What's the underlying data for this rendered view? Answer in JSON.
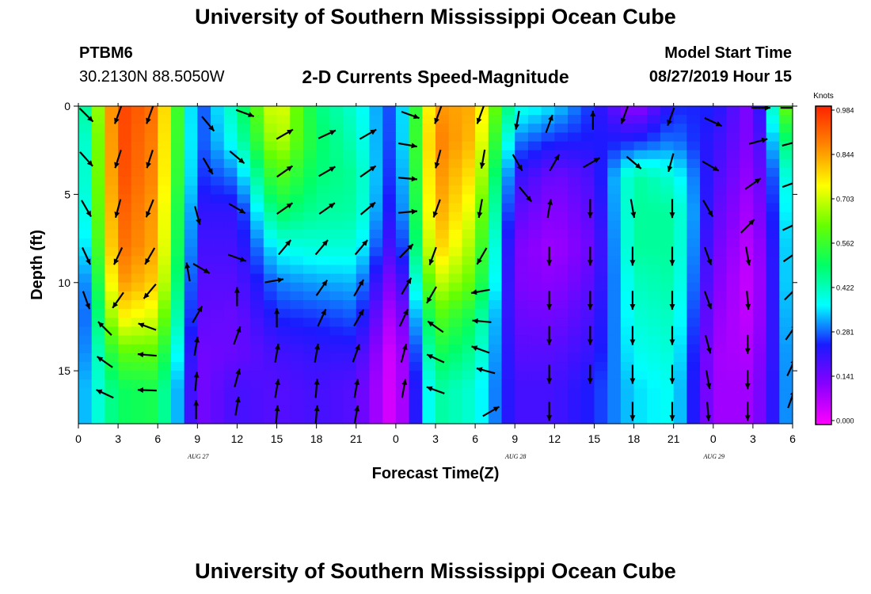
{
  "header": {
    "title": "University of Southern Mississippi Ocean Cube",
    "station_id": "PTBM6",
    "station_coords": "30.2130N 88.5050W",
    "chart_title": "2-D Currents Speed-Magnitude",
    "model_label": "Model Start Time",
    "model_time": "08/27/2019 Hour 15"
  },
  "footer": {
    "title": "University of Southern Mississippi Ocean Cube"
  },
  "colors": {
    "scale": [
      "#ff00ff",
      "#8a00ff",
      "#1a1aff",
      "#00ffff",
      "#00ff66",
      "#66ff00",
      "#ffff00",
      "#ff8800",
      "#ff2200"
    ],
    "arrow": "#000000"
  },
  "chart_data": {
    "type": "heatmap",
    "title": "2-D Currents Speed-Magnitude",
    "xlabel": "Forecast Time(Z)",
    "ylabel": "Depth (ft)",
    "x_ticks": [
      "0",
      "3",
      "6",
      "9",
      "12",
      "15",
      "18",
      "21",
      "0",
      "3",
      "6",
      "9",
      "12",
      "15",
      "18",
      "21",
      "0",
      "3",
      "6"
    ],
    "date_labels": [
      "AUG 27",
      "AUG 28",
      "AUG 29"
    ],
    "y_ticks": [
      "0",
      "5",
      "10",
      "15"
    ],
    "ylim": [
      0,
      18
    ],
    "colorbar": {
      "label": "Knots",
      "ticks": [
        "0.984",
        "0.844",
        "0.703",
        "0.562",
        "0.422",
        "0.281",
        "0.141",
        "0.000"
      ],
      "range": [
        0,
        0.984
      ]
    },
    "depths_ft": [
      0,
      2,
      4,
      6,
      8,
      10,
      12,
      14,
      16
    ],
    "hours": [
      0,
      3,
      6,
      9,
      12,
      15,
      18,
      21,
      24,
      27,
      30,
      33,
      36,
      39,
      42,
      45,
      48,
      51,
      54
    ],
    "speed_columns_knots": [
      [
        0.35,
        0.3,
        0.3,
        0.28,
        0.25,
        0.2,
        0.2,
        0.25,
        0.3
      ],
      [
        0.95,
        0.95,
        0.94,
        0.92,
        0.9,
        0.85,
        0.75,
        0.6,
        0.5
      ],
      [
        0.88,
        0.86,
        0.85,
        0.83,
        0.82,
        0.78,
        0.7,
        0.6,
        0.52
      ],
      [
        0.25,
        0.26,
        0.25,
        0.22,
        0.2,
        0.18,
        0.17,
        0.15,
        0.14
      ],
      [
        0.45,
        0.4,
        0.3,
        0.22,
        0.2,
        0.18,
        0.16,
        0.16,
        0.2
      ],
      [
        0.75,
        0.7,
        0.6,
        0.5,
        0.38,
        0.3,
        0.25,
        0.2,
        0.18
      ],
      [
        0.48,
        0.5,
        0.48,
        0.45,
        0.4,
        0.32,
        0.26,
        0.22,
        0.2
      ],
      [
        0.4,
        0.42,
        0.45,
        0.44,
        0.4,
        0.33,
        0.28,
        0.22,
        0.18
      ],
      [
        0.25,
        0.24,
        0.22,
        0.2,
        0.16,
        0.1,
        0.05,
        0.02,
        0.02
      ],
      [
        0.85,
        0.88,
        0.86,
        0.84,
        0.8,
        0.7,
        0.6,
        0.52,
        0.45
      ],
      [
        0.82,
        0.8,
        0.75,
        0.7,
        0.65,
        0.6,
        0.5,
        0.45,
        0.4
      ],
      [
        0.4,
        0.3,
        0.22,
        0.18,
        0.14,
        0.14,
        0.16,
        0.18,
        0.2
      ],
      [
        0.35,
        0.25,
        0.15,
        0.12,
        0.1,
        0.12,
        0.15,
        0.18,
        0.2
      ],
      [
        0.25,
        0.24,
        0.2,
        0.18,
        0.16,
        0.18,
        0.2,
        0.22,
        0.25
      ],
      [
        0.1,
        0.25,
        0.45,
        0.45,
        0.45,
        0.42,
        0.4,
        0.38,
        0.35
      ],
      [
        0.25,
        0.3,
        0.4,
        0.45,
        0.45,
        0.44,
        0.42,
        0.4,
        0.38
      ],
      [
        0.25,
        0.22,
        0.2,
        0.18,
        0.16,
        0.14,
        0.12,
        0.1,
        0.1
      ],
      [
        0.12,
        0.12,
        0.1,
        0.08,
        0.06,
        0.05,
        0.06,
        0.08,
        0.1
      ],
      [
        0.7,
        0.55,
        0.45,
        0.42,
        0.4,
        0.4,
        0.38,
        0.36,
        0.35
      ]
    ],
    "arrows": [
      {
        "x": 0.6,
        "y": 0.5,
        "a": -45
      },
      {
        "x": 0.6,
        "y": 3.0,
        "a": -48
      },
      {
        "x": 0.6,
        "y": 5.8,
        "a": -60
      },
      {
        "x": 0.6,
        "y": 8.5,
        "a": -65
      },
      {
        "x": 0.6,
        "y": 11.0,
        "a": -70
      },
      {
        "x": 3.0,
        "y": 0.5,
        "a": -110
      },
      {
        "x": 3.0,
        "y": 3.0,
        "a": -108
      },
      {
        "x": 3.0,
        "y": 5.8,
        "a": -105
      },
      {
        "x": 3.0,
        "y": 8.5,
        "a": -115
      },
      {
        "x": 3.0,
        "y": 11.0,
        "a": -125
      },
      {
        "x": 2.0,
        "y": 12.6,
        "a": 135
      },
      {
        "x": 2.0,
        "y": 14.5,
        "a": 145
      },
      {
        "x": 2.0,
        "y": 16.3,
        "a": 155
      },
      {
        "x": 5.4,
        "y": 0.5,
        "a": -110
      },
      {
        "x": 5.4,
        "y": 3.0,
        "a": -108
      },
      {
        "x": 5.4,
        "y": 5.8,
        "a": -112
      },
      {
        "x": 5.4,
        "y": 8.5,
        "a": -120
      },
      {
        "x": 5.4,
        "y": 10.5,
        "a": -130
      },
      {
        "x": 5.2,
        "y": 12.5,
        "a": 160
      },
      {
        "x": 5.2,
        "y": 14.1,
        "a": 175
      },
      {
        "x": 5.2,
        "y": 16.1,
        "a": 178
      },
      {
        "x": 9.8,
        "y": 1.0,
        "a": -50
      },
      {
        "x": 9.8,
        "y": 3.4,
        "a": -60
      },
      {
        "x": 9.0,
        "y": 6.2,
        "a": -75
      },
      {
        "x": 8.3,
        "y": 9.4,
        "a": 100
      },
      {
        "x": 9.3,
        "y": 9.2,
        "a": -30
      },
      {
        "x": 9.0,
        "y": 11.8,
        "a": 60
      },
      {
        "x": 8.9,
        "y": 13.6,
        "a": 80
      },
      {
        "x": 8.9,
        "y": 15.6,
        "a": 85
      },
      {
        "x": 8.9,
        "y": 17.2,
        "a": 90
      },
      {
        "x": 12.6,
        "y": 0.4,
        "a": -20
      },
      {
        "x": 12.0,
        "y": 2.9,
        "a": -40
      },
      {
        "x": 12.0,
        "y": 5.8,
        "a": -30
      },
      {
        "x": 12.0,
        "y": 8.6,
        "a": -20
      },
      {
        "x": 12.0,
        "y": 10.8,
        "a": 90
      },
      {
        "x": 12.0,
        "y": 13.0,
        "a": 70
      },
      {
        "x": 12.0,
        "y": 15.4,
        "a": 75
      },
      {
        "x": 12.0,
        "y": 17.0,
        "a": 80
      },
      {
        "x": 15.6,
        "y": 1.6,
        "a": 30
      },
      {
        "x": 15.6,
        "y": 3.7,
        "a": 35
      },
      {
        "x": 15.6,
        "y": 5.8,
        "a": 35
      },
      {
        "x": 15.6,
        "y": 8.0,
        "a": 50
      },
      {
        "x": 14.8,
        "y": 9.9,
        "a": 10
      },
      {
        "x": 15.0,
        "y": 12.0,
        "a": 90
      },
      {
        "x": 15.0,
        "y": 14.0,
        "a": 80
      },
      {
        "x": 15.0,
        "y": 16.0,
        "a": 80
      },
      {
        "x": 15.0,
        "y": 17.5,
        "a": 85
      },
      {
        "x": 18.8,
        "y": 1.6,
        "a": 25
      },
      {
        "x": 18.8,
        "y": 3.7,
        "a": 30
      },
      {
        "x": 18.8,
        "y": 5.8,
        "a": 35
      },
      {
        "x": 18.4,
        "y": 8.0,
        "a": 50
      },
      {
        "x": 18.4,
        "y": 10.3,
        "a": 55
      },
      {
        "x": 18.4,
        "y": 12.0,
        "a": 65
      },
      {
        "x": 18.0,
        "y": 14.0,
        "a": 80
      },
      {
        "x": 18.0,
        "y": 16.0,
        "a": 85
      },
      {
        "x": 18.0,
        "y": 17.5,
        "a": 85
      },
      {
        "x": 21.9,
        "y": 1.6,
        "a": 30
      },
      {
        "x": 21.9,
        "y": 3.7,
        "a": 35
      },
      {
        "x": 21.9,
        "y": 5.8,
        "a": 40
      },
      {
        "x": 21.4,
        "y": 8.0,
        "a": 50
      },
      {
        "x": 21.2,
        "y": 10.3,
        "a": 60
      },
      {
        "x": 21.2,
        "y": 12.0,
        "a": 60
      },
      {
        "x": 21.0,
        "y": 14.0,
        "a": 70
      },
      {
        "x": 21.0,
        "y": 16.0,
        "a": 80
      },
      {
        "x": 21.0,
        "y": 17.5,
        "a": 80
      },
      {
        "x": 25.1,
        "y": 0.5,
        "a": -20
      },
      {
        "x": 24.9,
        "y": 2.2,
        "a": -10
      },
      {
        "x": 24.9,
        "y": 4.1,
        "a": -5
      },
      {
        "x": 24.9,
        "y": 6.0,
        "a": 5
      },
      {
        "x": 24.8,
        "y": 8.2,
        "a": 45
      },
      {
        "x": 24.8,
        "y": 10.2,
        "a": 60
      },
      {
        "x": 24.6,
        "y": 12.0,
        "a": 65
      },
      {
        "x": 24.6,
        "y": 14.0,
        "a": 75
      },
      {
        "x": 24.6,
        "y": 16.0,
        "a": 80
      },
      {
        "x": 27.2,
        "y": 0.5,
        "a": -110
      },
      {
        "x": 27.2,
        "y": 3.0,
        "a": -105
      },
      {
        "x": 27.1,
        "y": 5.8,
        "a": -110
      },
      {
        "x": 26.8,
        "y": 8.5,
        "a": -110
      },
      {
        "x": 26.7,
        "y": 10.7,
        "a": -120
      },
      {
        "x": 27.0,
        "y": 12.5,
        "a": 145
      },
      {
        "x": 27.0,
        "y": 14.3,
        "a": 155
      },
      {
        "x": 27.0,
        "y": 16.1,
        "a": 160
      },
      {
        "x": 30.4,
        "y": 0.5,
        "a": -110
      },
      {
        "x": 30.6,
        "y": 3.0,
        "a": -100
      },
      {
        "x": 30.4,
        "y": 5.8,
        "a": -100
      },
      {
        "x": 30.5,
        "y": 8.5,
        "a": -120
      },
      {
        "x": 30.4,
        "y": 10.5,
        "a": -170
      },
      {
        "x": 30.5,
        "y": 12.2,
        "a": 175
      },
      {
        "x": 30.4,
        "y": 13.8,
        "a": 160
      },
      {
        "x": 30.8,
        "y": 15.0,
        "a": 165
      },
      {
        "x": 31.2,
        "y": 17.3,
        "a": 30
      },
      {
        "x": 33.2,
        "y": 0.8,
        "a": -100
      },
      {
        "x": 33.2,
        "y": 3.2,
        "a": -60
      },
      {
        "x": 33.8,
        "y": 5.0,
        "a": -50
      },
      {
        "x": 35.6,
        "y": 1.0,
        "a": 70
      },
      {
        "x": 36.0,
        "y": 3.2,
        "a": 60
      },
      {
        "x": 35.6,
        "y": 5.8,
        "a": 80
      },
      {
        "x": 35.6,
        "y": 8.5,
        "a": -90
      },
      {
        "x": 35.6,
        "y": 11.0,
        "a": -90
      },
      {
        "x": 35.6,
        "y": 13.0,
        "a": -90
      },
      {
        "x": 35.6,
        "y": 15.2,
        "a": -90
      },
      {
        "x": 35.6,
        "y": 17.3,
        "a": -90
      },
      {
        "x": 38.9,
        "y": 0.8,
        "a": 90
      },
      {
        "x": 38.8,
        "y": 3.2,
        "a": 30
      },
      {
        "x": 38.7,
        "y": 5.8,
        "a": -90
      },
      {
        "x": 38.7,
        "y": 8.5,
        "a": -90
      },
      {
        "x": 38.7,
        "y": 11.0,
        "a": -90
      },
      {
        "x": 38.7,
        "y": 13.0,
        "a": -90
      },
      {
        "x": 38.7,
        "y": 15.2,
        "a": -90
      },
      {
        "x": 41.3,
        "y": 0.5,
        "a": -110
      },
      {
        "x": 42.0,
        "y": 3.2,
        "a": -40
      },
      {
        "x": 41.9,
        "y": 5.8,
        "a": -80
      },
      {
        "x": 41.9,
        "y": 8.5,
        "a": -90
      },
      {
        "x": 41.9,
        "y": 11.0,
        "a": -90
      },
      {
        "x": 41.9,
        "y": 13.0,
        "a": -90
      },
      {
        "x": 41.9,
        "y": 15.2,
        "a": -90
      },
      {
        "x": 41.9,
        "y": 17.3,
        "a": -90
      },
      {
        "x": 44.8,
        "y": 0.6,
        "a": -110
      },
      {
        "x": 44.8,
        "y": 3.2,
        "a": -105
      },
      {
        "x": 44.9,
        "y": 5.8,
        "a": -90
      },
      {
        "x": 44.9,
        "y": 8.5,
        "a": -90
      },
      {
        "x": 44.9,
        "y": 11.0,
        "a": -90
      },
      {
        "x": 44.9,
        "y": 13.0,
        "a": -90
      },
      {
        "x": 44.9,
        "y": 15.2,
        "a": -90
      },
      {
        "x": 44.9,
        "y": 17.3,
        "a": -90
      },
      {
        "x": 48.0,
        "y": 0.9,
        "a": -25
      },
      {
        "x": 47.8,
        "y": 3.4,
        "a": -30
      },
      {
        "x": 47.6,
        "y": 5.8,
        "a": -60
      },
      {
        "x": 47.6,
        "y": 8.5,
        "a": -70
      },
      {
        "x": 47.6,
        "y": 11.0,
        "a": -70
      },
      {
        "x": 47.6,
        "y": 13.5,
        "a": -75
      },
      {
        "x": 47.6,
        "y": 15.5,
        "a": -80
      },
      {
        "x": 47.6,
        "y": 17.3,
        "a": -85
      },
      {
        "x": 51.6,
        "y": 0.1,
        "a": 0
      },
      {
        "x": 51.4,
        "y": 2.0,
        "a": 15
      },
      {
        "x": 51.0,
        "y": 4.4,
        "a": 35
      },
      {
        "x": 50.6,
        "y": 6.8,
        "a": 45
      },
      {
        "x": 50.6,
        "y": 8.5,
        "a": -80
      },
      {
        "x": 50.6,
        "y": 11.0,
        "a": -85
      },
      {
        "x": 50.6,
        "y": 13.5,
        "a": -90
      },
      {
        "x": 50.6,
        "y": 15.5,
        "a": -90
      },
      {
        "x": 50.6,
        "y": 17.3,
        "a": -90
      },
      {
        "x": 53.8,
        "y": 0.1,
        "a": 0
      },
      {
        "x": 53.9,
        "y": 2.1,
        "a": 15
      },
      {
        "x": 53.9,
        "y": 4.4,
        "a": 20
      },
      {
        "x": 53.9,
        "y": 6.8,
        "a": 25
      },
      {
        "x": 53.9,
        "y": 8.5,
        "a": 35
      },
      {
        "x": 53.9,
        "y": 10.6,
        "a": 45
      },
      {
        "x": 53.9,
        "y": 12.8,
        "a": 55
      },
      {
        "x": 53.9,
        "y": 14.8,
        "a": 65
      },
      {
        "x": 53.9,
        "y": 16.6,
        "a": 70
      }
    ]
  }
}
